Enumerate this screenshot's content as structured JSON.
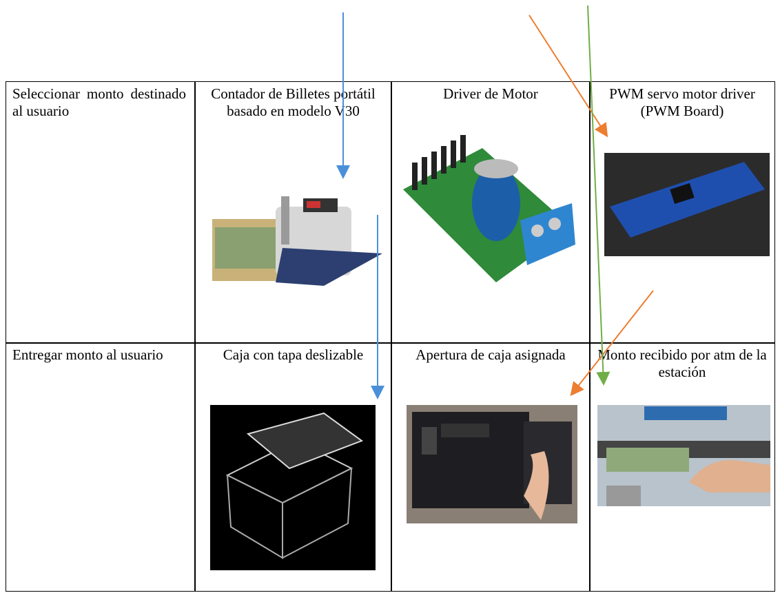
{
  "table": {
    "rows": [
      [
        "Seleccionar monto destinado al usuario",
        "Contador de Billetes portátil basado en modelo V30",
        "Driver de Motor",
        "PWM servo motor driver (PWM Board)"
      ],
      [
        "Entregar monto al usuario",
        "Caja con tapa deslizable",
        "Apertura de caja asignada",
        "Monto recibido por atm de la estación"
      ]
    ]
  }
}
